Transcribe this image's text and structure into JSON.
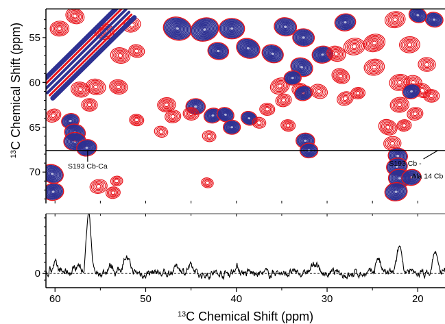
{
  "chart_data": [
    {
      "type": "heatmap",
      "subtype": "2D 13C-13C NMR contour spectrum (two overlaid spectra)",
      "title": "",
      "xlabel": "",
      "ylabel_sup": "13",
      "ylabel_text": "C Chemical Shift (ppm)",
      "xlim": [
        61.0,
        17.0
      ],
      "ylim": [
        51.8,
        73.5
      ],
      "x_reversed": true,
      "y_reversed": true,
      "yticks": [
        55,
        60,
        65,
        70
      ],
      "ytick_labels": [
        "55",
        "60",
        "65",
        "70"
      ],
      "xticks_minor": [
        60,
        55,
        50,
        45,
        40,
        35,
        30,
        25,
        20
      ],
      "grid": false,
      "slice_line_ppm": 67.6,
      "series": [
        {
          "color": "#e8141b"
        },
        {
          "color": "#2e3192"
        }
      ],
      "diagonal_ends": [
        [
          61.0,
          61.0
        ],
        [
          52.0,
          52.0
        ]
      ],
      "annotations": [
        {
          "text": "S193 Cb-Ca",
          "point": [
            56.4,
            67.6
          ],
          "label_at": [
            56.4,
            69.6
          ],
          "align": "middle"
        },
        {
          "text": "S193 Cb -",
          "point": [
            17.8,
            67.6
          ],
          "label_at": [
            19.6,
            69.3
          ],
          "align": "end"
        },
        {
          "text": "Ala 14 Cb",
          "point": null,
          "label_at": [
            17.2,
            70.7
          ],
          "align": "end"
        }
      ],
      "peaks": [
        {
          "x": 60.2,
          "y": 63.7,
          "color": "red",
          "size": 1
        },
        {
          "x": 60.3,
          "y": 70.2,
          "color": "blue",
          "size": 1.6
        },
        {
          "x": 60.2,
          "y": 72.2,
          "color": "blue",
          "size": 1.4
        },
        {
          "x": 58.3,
          "y": 64.3,
          "color": "blue",
          "size": 1.0
        },
        {
          "x": 57.8,
          "y": 65.6,
          "color": "blue",
          "size": 1.4
        },
        {
          "x": 57.8,
          "y": 66.6,
          "color": "blue",
          "size": 1.6
        },
        {
          "x": 56.5,
          "y": 67.3,
          "color": "blue",
          "size": 1.3
        },
        {
          "x": 57.2,
          "y": 60.8,
          "color": "red",
          "size": 1.4
        },
        {
          "x": 55.5,
          "y": 60.5,
          "color": "red",
          "size": 1.5
        },
        {
          "x": 56.2,
          "y": 62.5,
          "color": "red",
          "size": 1.0
        },
        {
          "x": 53.0,
          "y": 60.5,
          "color": "red",
          "size": 1.3
        },
        {
          "x": 51.0,
          "y": 64.2,
          "color": "red",
          "size": 0.8
        },
        {
          "x": 48.3,
          "y": 65.5,
          "color": "red",
          "size": 0.7
        },
        {
          "x": 55.2,
          "y": 71.6,
          "color": "red",
          "size": 1.2
        },
        {
          "x": 53.6,
          "y": 72.3,
          "color": "red",
          "size": 0.8
        },
        {
          "x": 54.6,
          "y": 54.3,
          "color": "red",
          "size": 1.6
        },
        {
          "x": 52.8,
          "y": 57.0,
          "color": "red",
          "size": 1.5
        },
        {
          "x": 51.5,
          "y": 53.6,
          "color": "red",
          "size": 1.2
        },
        {
          "x": 51.0,
          "y": 56.5,
          "color": "red",
          "size": 1.0
        },
        {
          "x": 59.5,
          "y": 54.0,
          "color": "red",
          "size": 1.4
        },
        {
          "x": 57.8,
          "y": 52.6,
          "color": "red",
          "size": 1.4
        },
        {
          "x": 46.5,
          "y": 54.0,
          "color": "blue",
          "size": 2.4
        },
        {
          "x": 43.5,
          "y": 54.1,
          "color": "blue",
          "size": 2.4
        },
        {
          "x": 40.5,
          "y": 54.0,
          "color": "blue",
          "size": 2.0
        },
        {
          "x": 38.7,
          "y": 56.2,
          "color": "blue",
          "size": 1.8
        },
        {
          "x": 42.0,
          "y": 56.5,
          "color": "blue",
          "size": 1.4
        },
        {
          "x": 34.6,
          "y": 53.8,
          "color": "blue",
          "size": 1.6
        },
        {
          "x": 32.6,
          "y": 55.0,
          "color": "blue",
          "size": 1.5
        },
        {
          "x": 36.0,
          "y": 56.8,
          "color": "blue",
          "size": 1.5
        },
        {
          "x": 32.8,
          "y": 58.3,
          "color": "blue",
          "size": 1.6
        },
        {
          "x": 30.5,
          "y": 56.9,
          "color": "blue",
          "size": 1.4
        },
        {
          "x": 28.0,
          "y": 53.3,
          "color": "blue",
          "size": 1.4
        },
        {
          "x": 29.0,
          "y": 56.8,
          "color": "red",
          "size": 1.4
        },
        {
          "x": 27.0,
          "y": 56.0,
          "color": "red",
          "size": 1.7
        },
        {
          "x": 24.8,
          "y": 55.6,
          "color": "red",
          "size": 1.8
        },
        {
          "x": 22.5,
          "y": 53.0,
          "color": "red",
          "size": 1.6
        },
        {
          "x": 20.9,
          "y": 55.8,
          "color": "red",
          "size": 1.6
        },
        {
          "x": 24.8,
          "y": 58.3,
          "color": "red",
          "size": 1.6
        },
        {
          "x": 28.5,
          "y": 59.3,
          "color": "red",
          "size": 1.3
        },
        {
          "x": 19.0,
          "y": 58.0,
          "color": "red",
          "size": 1.2
        },
        {
          "x": 18.2,
          "y": 53.0,
          "color": "blue",
          "size": 1.0
        },
        {
          "x": 20.0,
          "y": 52.5,
          "color": "blue",
          "size": 1.0
        },
        {
          "x": 35.2,
          "y": 60.4,
          "color": "red",
          "size": 1.5
        },
        {
          "x": 34.8,
          "y": 62.0,
          "color": "red",
          "size": 1.0
        },
        {
          "x": 36.6,
          "y": 63.0,
          "color": "red",
          "size": 0.9
        },
        {
          "x": 33.0,
          "y": 60.8,
          "color": "red",
          "size": 1.0
        },
        {
          "x": 33.8,
          "y": 59.5,
          "color": "blue",
          "size": 0.9
        },
        {
          "x": 32.6,
          "y": 61.2,
          "color": "blue",
          "size": 1.0
        },
        {
          "x": 30.9,
          "y": 61.0,
          "color": "red",
          "size": 1.2
        },
        {
          "x": 28.0,
          "y": 61.8,
          "color": "red",
          "size": 1.1
        },
        {
          "x": 26.6,
          "y": 61.2,
          "color": "red",
          "size": 0.8
        },
        {
          "x": 22.0,
          "y": 60.0,
          "color": "red",
          "size": 1.6
        },
        {
          "x": 20.5,
          "y": 60.0,
          "color": "red",
          "size": 1.2
        },
        {
          "x": 19.5,
          "y": 60.9,
          "color": "red",
          "size": 1.2
        },
        {
          "x": 18.5,
          "y": 61.5,
          "color": "red",
          "size": 1.0
        },
        {
          "x": 20.7,
          "y": 61.0,
          "color": "blue",
          "size": 1.0
        },
        {
          "x": 22.0,
          "y": 62.5,
          "color": "red",
          "size": 1.4
        },
        {
          "x": 20.3,
          "y": 63.5,
          "color": "red",
          "size": 1.0
        },
        {
          "x": 21.5,
          "y": 64.8,
          "color": "red",
          "size": 0.8
        },
        {
          "x": 47.7,
          "y": 62.5,
          "color": "red",
          "size": 1.3
        },
        {
          "x": 47.0,
          "y": 63.8,
          "color": "red",
          "size": 1.0
        },
        {
          "x": 44.5,
          "y": 62.7,
          "color": "blue",
          "size": 1.2
        },
        {
          "x": 45.0,
          "y": 63.5,
          "color": "red",
          "size": 1.0
        },
        {
          "x": 42.6,
          "y": 63.7,
          "color": "blue",
          "size": 1.0
        },
        {
          "x": 41.2,
          "y": 63.6,
          "color": "blue",
          "size": 0.9
        },
        {
          "x": 40.5,
          "y": 65.0,
          "color": "blue",
          "size": 0.9
        },
        {
          "x": 38.6,
          "y": 64.0,
          "color": "blue",
          "size": 0.8
        },
        {
          "x": 37.5,
          "y": 64.5,
          "color": "red",
          "size": 0.7
        },
        {
          "x": 34.3,
          "y": 64.8,
          "color": "red",
          "size": 0.8
        },
        {
          "x": 32.4,
          "y": 66.5,
          "color": "blue",
          "size": 1.1
        },
        {
          "x": 32.0,
          "y": 67.6,
          "color": "blue",
          "size": 1.0
        },
        {
          "x": 43.0,
          "y": 66.0,
          "color": "red",
          "size": 0.7
        },
        {
          "x": 23.3,
          "y": 65.0,
          "color": "red",
          "size": 1.4
        },
        {
          "x": 22.8,
          "y": 66.8,
          "color": "red",
          "size": 1.2
        },
        {
          "x": 22.2,
          "y": 68.2,
          "color": "blue",
          "size": 1.2
        },
        {
          "x": 22.3,
          "y": 69.4,
          "color": "blue",
          "size": 1.4
        },
        {
          "x": 22.0,
          "y": 70.7,
          "color": "blue",
          "size": 1.6
        },
        {
          "x": 22.4,
          "y": 72.2,
          "color": "blue",
          "size": 1.6
        },
        {
          "x": 20.7,
          "y": 70.6,
          "color": "blue",
          "size": 1.2
        },
        {
          "x": 53.2,
          "y": 71.0,
          "color": "red",
          "size": 0.5
        },
        {
          "x": 43.2,
          "y": 71.2,
          "color": "red",
          "size": 0.5
        }
      ]
    },
    {
      "type": "line",
      "subtype": "1D slice through 2D spectrum at the marked row",
      "title": "",
      "xlabel_sup": "13",
      "xlabel_text": "C Chemical Shift (ppm)",
      "ylabel": "",
      "xlim": [
        61.0,
        17.0
      ],
      "x_reversed": true,
      "ylim": [
        -0.25,
        1.05
      ],
      "xticks": [
        60,
        50,
        40,
        30,
        20
      ],
      "xtick_labels": [
        "60",
        "50",
        "40",
        "30",
        "20"
      ],
      "xticks_minor": [
        55,
        45,
        35,
        25
      ],
      "yticks": [
        0
      ],
      "ytick_labels": [
        "0"
      ],
      "baseline_dashed": true,
      "grid": false,
      "series": [
        {
          "color": "#000000",
          "peaks": [
            {
              "x": 60.0,
              "y": 0.18,
              "w": 0.45
            },
            {
              "x": 57.5,
              "y": 0.16,
              "w": 0.5
            },
            {
              "x": 56.3,
              "y": 1.0,
              "w": 0.35
            },
            {
              "x": 52.2,
              "y": 0.3,
              "w": 0.5
            },
            {
              "x": 53.8,
              "y": 0.1,
              "w": 0.5
            },
            {
              "x": 46.5,
              "y": 0.12,
              "w": 0.5
            },
            {
              "x": 45.2,
              "y": 0.1,
              "w": 0.5
            },
            {
              "x": 40.0,
              "y": 0.1,
              "w": 0.5
            },
            {
              "x": 31.3,
              "y": 0.19,
              "w": 0.45
            },
            {
              "x": 24.4,
              "y": 0.28,
              "w": 0.35
            },
            {
              "x": 22.0,
              "y": 0.44,
              "w": 0.4
            },
            {
              "x": 18.1,
              "y": 0.39,
              "w": 0.35
            }
          ],
          "noise_amplitude": 0.07
        }
      ]
    }
  ]
}
